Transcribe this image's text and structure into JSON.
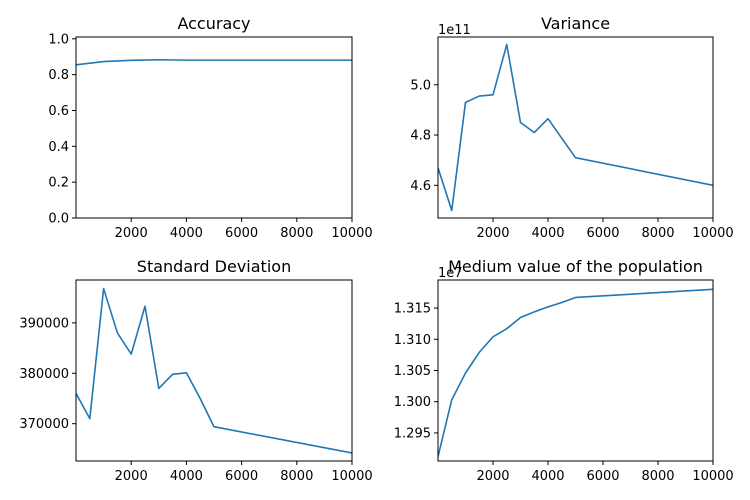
{
  "chart_data": [
    {
      "type": "line",
      "title": "Accuracy",
      "xlim": [
        0,
        10000
      ],
      "ylim": [
        0,
        1.01
      ],
      "xticks": [
        2000,
        4000,
        6000,
        8000,
        10000
      ],
      "xtick_labels": [
        "2000",
        "4000",
        "6000",
        "8000",
        "10000"
      ],
      "yticks": [
        0,
        0.2,
        0.4,
        0.6,
        0.8,
        1.0
      ],
      "ytick_labels": [
        "0.0",
        "0.2",
        "0.4",
        "0.6",
        "0.8",
        "1.0"
      ],
      "offset_label": "",
      "color": "#1f77b4",
      "x": [
        0,
        1000,
        2000,
        3000,
        4000,
        5000,
        10000
      ],
      "y": [
        0.855,
        0.873,
        0.88,
        0.883,
        0.881,
        0.881,
        0.881
      ]
    },
    {
      "type": "line",
      "title": "Variance",
      "xlim": [
        0,
        10000
      ],
      "ylim": [
        4.47,
        5.19
      ],
      "xticks": [
        2000,
        4000,
        6000,
        8000,
        10000
      ],
      "xtick_labels": [
        "2000",
        "4000",
        "6000",
        "8000",
        "10000"
      ],
      "yticks": [
        4.6,
        4.8,
        5.0
      ],
      "ytick_labels": [
        "4.6",
        "4.8",
        "5.0"
      ],
      "offset_label": "1e11",
      "color": "#1f77b4",
      "x": [
        0,
        500,
        1000,
        1500,
        2000,
        2500,
        3000,
        3500,
        4000,
        5000,
        10000
      ],
      "y": [
        4.67,
        4.5,
        4.93,
        4.955,
        4.96,
        5.16,
        4.85,
        4.81,
        4.865,
        4.71,
        4.6
      ]
    },
    {
      "type": "line",
      "title": "Standard Deviation",
      "xlim": [
        0,
        10000
      ],
      "ylim": [
        362600,
        398500
      ],
      "xticks": [
        2000,
        4000,
        6000,
        8000,
        10000
      ],
      "xtick_labels": [
        "2000",
        "4000",
        "6000",
        "8000",
        "10000"
      ],
      "yticks": [
        370000,
        380000,
        390000
      ],
      "ytick_labels": [
        "370000",
        "380000",
        "390000"
      ],
      "offset_label": "",
      "color": "#1f77b4",
      "x": [
        0,
        500,
        1000,
        1500,
        2000,
        2500,
        3000,
        3500,
        4000,
        4500,
        5000,
        10000
      ],
      "y": [
        376000,
        371000,
        396800,
        388000,
        383800,
        393300,
        377000,
        379800,
        380100,
        375000,
        369400,
        364200
      ]
    },
    {
      "type": "line",
      "title": "Medium value of the population",
      "xlim": [
        0,
        10000
      ],
      "ylim": [
        1.2905,
        1.3195
      ],
      "xticks": [
        2000,
        4000,
        6000,
        8000,
        10000
      ],
      "xtick_labels": [
        "2000",
        "4000",
        "6000",
        "8000",
        "10000"
      ],
      "yticks": [
        1.295,
        1.3,
        1.305,
        1.31,
        1.315
      ],
      "ytick_labels": [
        "1.295",
        "1.300",
        "1.305",
        "1.310",
        "1.315"
      ],
      "offset_label": "1e7",
      "color": "#1f77b4",
      "x": [
        0,
        500,
        1000,
        1500,
        2000,
        2500,
        3000,
        3500,
        4000,
        4500,
        5000,
        10000
      ],
      "y": [
        1.2912,
        1.3003,
        1.3046,
        1.3079,
        1.3104,
        1.3117,
        1.3135,
        1.3144,
        1.3152,
        1.3159,
        1.3167,
        1.318
      ]
    }
  ]
}
